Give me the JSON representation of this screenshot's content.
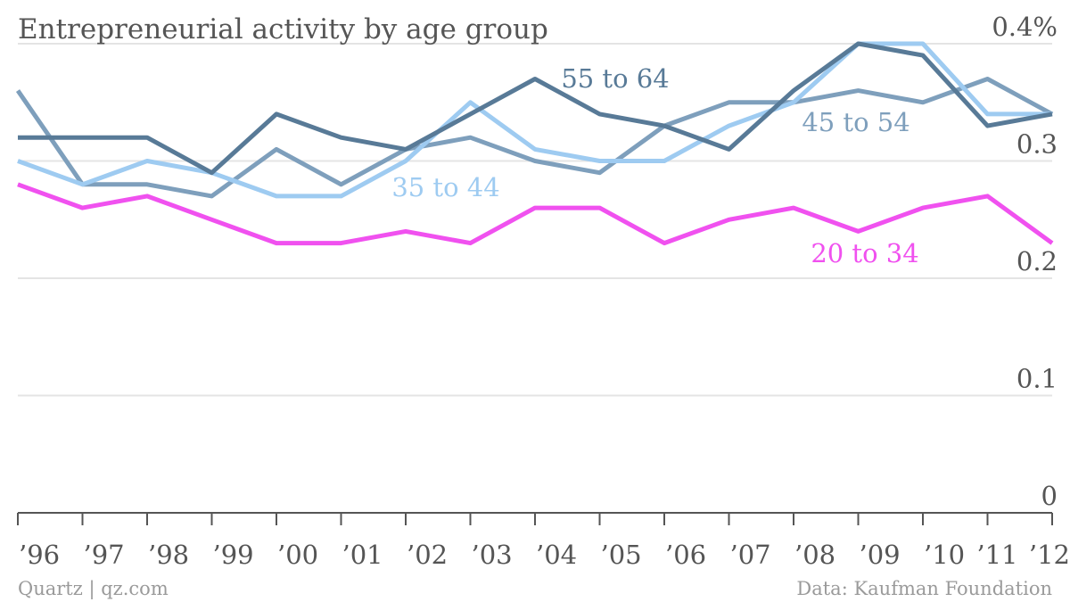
{
  "chart_data": {
    "type": "line",
    "title": "Entrepreneurial activity by age group",
    "x": [
      "’96",
      "’97",
      "’98",
      "’99",
      "’00",
      "’01",
      "’02",
      "’03",
      "’04",
      "’05",
      "’06",
      "’07",
      "’08",
      "’09",
      "’10",
      "’11",
      "’12"
    ],
    "ylim": [
      0,
      0.4
    ],
    "yticks": [
      {
        "value": 0.4,
        "label": "0.4%"
      },
      {
        "value": 0.3,
        "label": "0.3"
      },
      {
        "value": 0.2,
        "label": "0.2"
      },
      {
        "value": 0.1,
        "label": "0.1"
      },
      {
        "value": 0,
        "label": "0"
      }
    ],
    "grid": true,
    "series": [
      {
        "name": "45 to 54",
        "label": "45 to 54",
        "color": "#7e9fbc",
        "values": [
          0.36,
          0.28,
          0.28,
          0.27,
          0.31,
          0.28,
          0.31,
          0.32,
          0.3,
          0.29,
          0.33,
          0.35,
          0.35,
          0.36,
          0.35,
          0.37,
          0.34
        ]
      },
      {
        "name": "35 to 44",
        "label": "35 to 44",
        "color": "#9ecbf1",
        "values": [
          0.3,
          0.28,
          0.3,
          0.29,
          0.27,
          0.27,
          0.3,
          0.35,
          0.31,
          0.3,
          0.3,
          0.33,
          0.35,
          0.4,
          0.4,
          0.34,
          0.34
        ]
      },
      {
        "name": "55 to 64",
        "label": "55 to 64",
        "color": "#587a97",
        "values": [
          0.32,
          0.32,
          0.32,
          0.29,
          0.34,
          0.32,
          0.31,
          0.34,
          0.37,
          0.34,
          0.33,
          0.31,
          0.36,
          0.4,
          0.39,
          0.33,
          0.34
        ]
      },
      {
        "name": "20 to 34",
        "label": "20 to 34",
        "color": "#f051ef",
        "values": [
          0.28,
          0.26,
          0.27,
          0.25,
          0.23,
          0.23,
          0.24,
          0.23,
          0.26,
          0.26,
          0.23,
          0.25,
          0.26,
          0.24,
          0.26,
          0.27,
          0.23
        ]
      }
    ],
    "annotations": [
      {
        "series": "55 to 64",
        "text": "55 to 64"
      },
      {
        "series": "45 to 54",
        "text": "45 to 54"
      },
      {
        "series": "35 to 44",
        "text": "35 to 44"
      },
      {
        "series": "20 to 34",
        "text": "20 to 34"
      }
    ]
  },
  "footer": {
    "source_left": "Quartz | qz.com",
    "source_right": "Data: Kaufman Foundation"
  }
}
